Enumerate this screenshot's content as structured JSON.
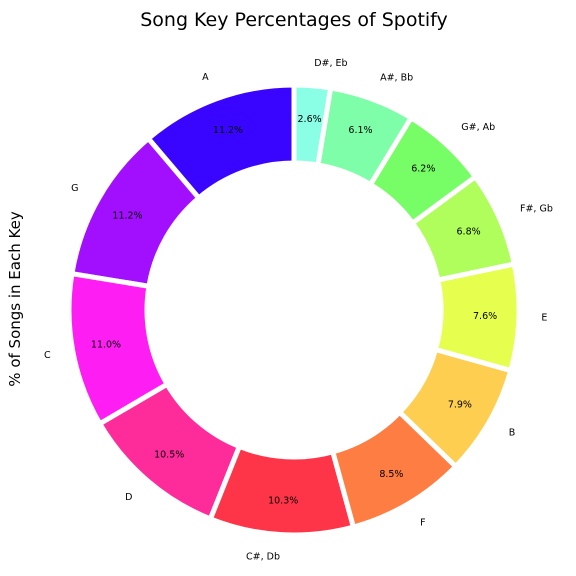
{
  "chart_data": {
    "type": "pie",
    "title": "Song Key Percentages of Spotify",
    "ylabel": "% of Songs in Each Key",
    "xlabel": "",
    "donut": true,
    "start_angle_deg": 90,
    "direction": "counterclockwise",
    "categories": [
      "A",
      "G",
      "C",
      "D",
      "C#, Db",
      "F",
      "B",
      "E",
      "F#, Gb",
      "G#, Ab",
      "A#, Bb",
      "D#, Eb"
    ],
    "values": [
      11.2,
      11.2,
      11.0,
      10.5,
      10.3,
      8.5,
      7.9,
      7.6,
      6.8,
      6.2,
      6.1,
      2.6
    ],
    "percent_labels": [
      "11.2%",
      "11.2%",
      "11.0%",
      "10.5%",
      "10.3%",
      "8.5%",
      "7.9%",
      "7.6%",
      "6.8%",
      "6.2%",
      "6.1%",
      "2.6%"
    ],
    "colors": [
      "#3a05ff",
      "#a20ffe",
      "#fe1ef4",
      "#fe2c9b",
      "#fe3549",
      "#fe7d42",
      "#fece50",
      "#e6ff4f",
      "#affe5b",
      "#77fd66",
      "#7ffea9",
      "#8bfee6"
    ]
  }
}
